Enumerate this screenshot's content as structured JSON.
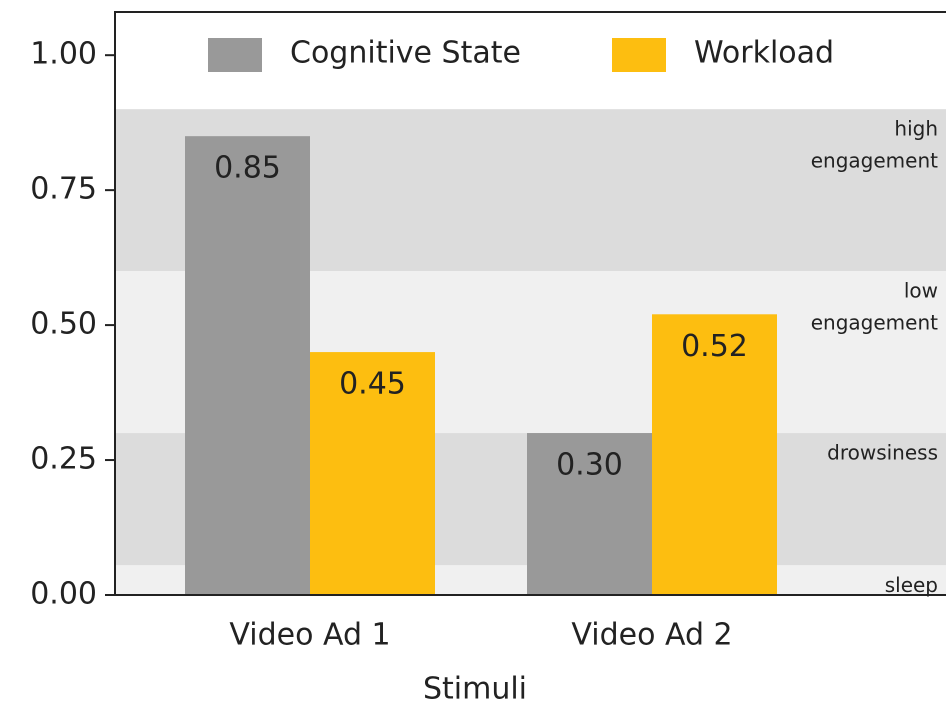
{
  "chart_data": {
    "type": "bar",
    "x_label": "Stimuli",
    "categories": [
      "Video Ad 1",
      "Video Ad 2"
    ],
    "series": [
      {
        "name": "Cognitive State",
        "color": "#999999",
        "values": [
          0.85,
          0.3
        ],
        "value_labels": [
          "0.85",
          "0.30"
        ]
      },
      {
        "name": "Workload",
        "color": "#fdbe10",
        "values": [
          0.45,
          0.52
        ],
        "value_labels": [
          "0.45",
          "0.52"
        ]
      }
    ],
    "ylim": [
      0,
      1.08
    ],
    "yticks": [
      {
        "value": 0,
        "label": "0.00"
      },
      {
        "value": 0.25,
        "label": "0.25"
      },
      {
        "value": 0.5,
        "label": "0.50"
      },
      {
        "value": 0.75,
        "label": "0.75"
      },
      {
        "value": 1,
        "label": "1.00"
      }
    ],
    "bands": [
      {
        "label": [
          "high",
          "engagement"
        ],
        "from": 0.6,
        "to": 0.9,
        "color": "#dcdcdc"
      },
      {
        "label": [
          "low",
          "engagement"
        ],
        "from": 0.3,
        "to": 0.6,
        "color": "#f0f0f0"
      },
      {
        "label": [
          "drowsiness"
        ],
        "from": 0.055,
        "to": 0.3,
        "color": "#dcdcdc"
      },
      {
        "label": [
          "sleep"
        ],
        "from": 0,
        "to": 0.055,
        "color": "#f0f0f0"
      }
    ],
    "legend": "top"
  }
}
